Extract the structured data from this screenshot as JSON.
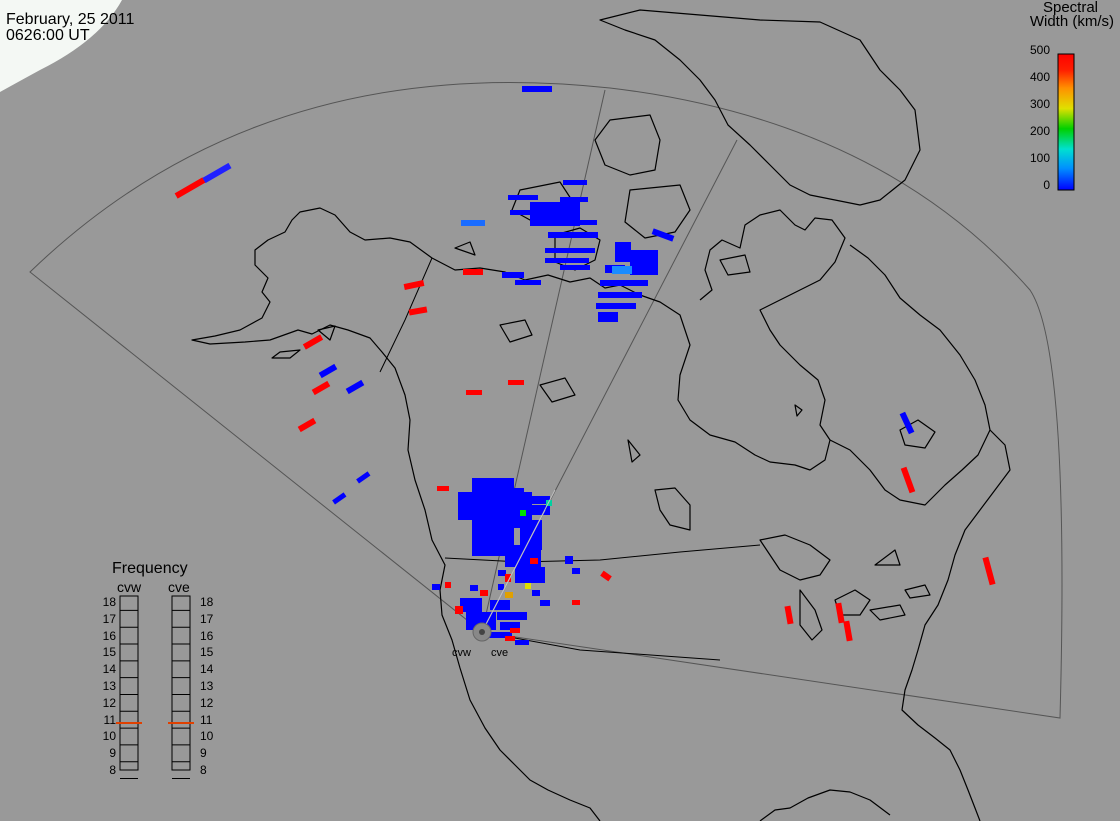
{
  "header": {
    "date": "February, 25 2011",
    "time": "0626:00 UT"
  },
  "colorbar": {
    "title_line1": "Spectral",
    "title_line2": "Width (km/s)",
    "ticks": [
      "500",
      "400",
      "300",
      "200",
      "100",
      "0"
    ],
    "colors": [
      "#0000ff",
      "#00a0ff",
      "#00e0c0",
      "#00d000",
      "#e0e000",
      "#ff9000",
      "#ff0000"
    ]
  },
  "frequency": {
    "title": "Frequency",
    "radars": [
      {
        "name": "cvw",
        "current_mhz": 10.8,
        "line_color": "#e04000"
      },
      {
        "name": "cve",
        "current_mhz": 10.8,
        "line_color": "#e04000"
      }
    ],
    "scale": [
      "18",
      "17",
      "16",
      "15",
      "14",
      "13",
      "12",
      "11",
      "10",
      "9",
      "8"
    ]
  },
  "sites": [
    {
      "name": "cvw",
      "icon": "radar-site-icon"
    },
    {
      "name": "cve",
      "icon": "radar-site-icon"
    }
  ]
}
